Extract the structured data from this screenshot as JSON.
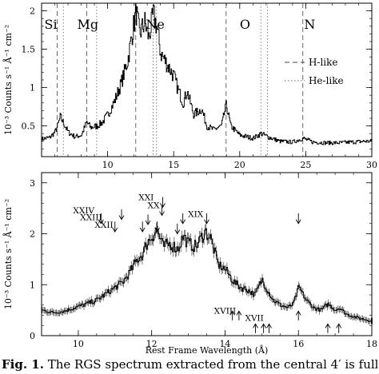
{
  "chart_data": [
    {
      "type": "line",
      "panel": "top",
      "xlabel": "",
      "ylabel": "10⁻³ Counts s⁻¹ Å⁻¹ cm⁻²",
      "xlim": [
        5,
        30
      ],
      "ylim": [
        0.1,
        2.1
      ],
      "x_ticks": [
        10,
        15,
        20,
        25,
        30
      ],
      "y_ticks": [
        0.5,
        1,
        1.5,
        2
      ],
      "element_labels": [
        {
          "text": "Si",
          "x": 5.7
        },
        {
          "text": "Mg",
          "x": 8.5
        },
        {
          "text": "Ne",
          "x": 13.6
        },
        {
          "text": "O",
          "x": 20.4
        },
        {
          "text": "N",
          "x": 25.3
        }
      ],
      "h_like_lines": [
        6.18,
        8.42,
        12.13,
        18.97,
        24.78
      ],
      "he_like_lines": [
        6.65,
        9.17,
        13.45,
        13.7,
        21.6,
        22.1
      ],
      "legend": [
        {
          "label": "H-like",
          "style": "dashed"
        },
        {
          "label": "He-like",
          "style": "dotted"
        }
      ],
      "legend_position": "right",
      "spectrum_points": [
        {
          "x": 5.0,
          "y": 0.33
        },
        {
          "x": 5.6,
          "y": 0.35
        },
        {
          "x": 6.0,
          "y": 0.42
        },
        {
          "x": 6.2,
          "y": 0.5
        },
        {
          "x": 6.4,
          "y": 0.62
        },
        {
          "x": 6.6,
          "y": 0.55
        },
        {
          "x": 7.0,
          "y": 0.42
        },
        {
          "x": 7.5,
          "y": 0.36
        },
        {
          "x": 8.0,
          "y": 0.38
        },
        {
          "x": 8.4,
          "y": 0.55
        },
        {
          "x": 8.7,
          "y": 0.48
        },
        {
          "x": 9.2,
          "y": 0.5
        },
        {
          "x": 9.6,
          "y": 0.55
        },
        {
          "x": 10.0,
          "y": 0.65
        },
        {
          "x": 10.5,
          "y": 0.82
        },
        {
          "x": 11.0,
          "y": 1.05
        },
        {
          "x": 11.5,
          "y": 1.35
        },
        {
          "x": 11.9,
          "y": 1.75
        },
        {
          "x": 12.13,
          "y": 2.0
        },
        {
          "x": 12.4,
          "y": 1.7
        },
        {
          "x": 12.8,
          "y": 1.85
        },
        {
          "x": 13.1,
          "y": 1.65
        },
        {
          "x": 13.45,
          "y": 1.95
        },
        {
          "x": 13.7,
          "y": 1.8
        },
        {
          "x": 14.0,
          "y": 1.45
        },
        {
          "x": 14.5,
          "y": 1.3
        },
        {
          "x": 15.0,
          "y": 1.15
        },
        {
          "x": 15.3,
          "y": 0.98
        },
        {
          "x": 15.7,
          "y": 0.8
        },
        {
          "x": 16.0,
          "y": 0.95
        },
        {
          "x": 16.5,
          "y": 0.65
        },
        {
          "x": 17.1,
          "y": 0.72
        },
        {
          "x": 17.5,
          "y": 0.5
        },
        {
          "x": 18.0,
          "y": 0.45
        },
        {
          "x": 18.6,
          "y": 0.5
        },
        {
          "x": 18.97,
          "y": 0.78
        },
        {
          "x": 19.3,
          "y": 0.5
        },
        {
          "x": 20.0,
          "y": 0.38
        },
        {
          "x": 21.0,
          "y": 0.34
        },
        {
          "x": 21.6,
          "y": 0.4
        },
        {
          "x": 22.1,
          "y": 0.36
        },
        {
          "x": 23.0,
          "y": 0.3
        },
        {
          "x": 24.0,
          "y": 0.29
        },
        {
          "x": 24.78,
          "y": 0.34
        },
        {
          "x": 25.5,
          "y": 0.29
        },
        {
          "x": 26.5,
          "y": 0.28
        },
        {
          "x": 27.5,
          "y": 0.28
        },
        {
          "x": 28.5,
          "y": 0.29
        },
        {
          "x": 29.5,
          "y": 0.3
        }
      ]
    },
    {
      "type": "line",
      "panel": "bottom",
      "xlabel": "Rest Frame Wavelength (Å)",
      "ylabel": "10⁻³ Counts s⁻¹ Å⁻¹ cm⁻²",
      "xlim": [
        9,
        18
      ],
      "ylim": [
        0,
        3.2
      ],
      "x_ticks": [
        10,
        12,
        14,
        16,
        18
      ],
      "y_ticks": [
        0,
        1,
        2,
        3
      ],
      "ion_labels": [
        {
          "text": "XXIV",
          "x": 10.15,
          "y": 2.4
        },
        {
          "text": "XXIII",
          "x": 10.35,
          "y": 2.27
        },
        {
          "text": "XXII",
          "x": 10.7,
          "y": 2.12
        },
        {
          "text": "XXI",
          "x": 11.85,
          "y": 2.66
        },
        {
          "text": "XX",
          "x": 12.05,
          "y": 2.5
        },
        {
          "text": "XIX",
          "x": 13.2,
          "y": 2.33
        },
        {
          "text": "XVIII",
          "x": 14.0,
          "y": 0.43
        },
        {
          "text": "XVII",
          "x": 14.8,
          "y": 0.29
        }
      ],
      "down_arrows": [
        10.62,
        11.18,
        11.0,
        11.75,
        12.15,
        12.28,
        12.85,
        12.7,
        13.5,
        16.0,
        11.9,
        12.3
      ],
      "up_arrows": [
        14.2,
        14.38,
        14.83,
        15.05,
        15.2,
        16.0,
        16.8,
        17.1
      ],
      "spectrum_points": [
        {
          "x": 9.0,
          "y": 0.5
        },
        {
          "x": 9.3,
          "y": 0.45
        },
        {
          "x": 9.6,
          "y": 0.48
        },
        {
          "x": 9.9,
          "y": 0.55
        },
        {
          "x": 10.2,
          "y": 0.62
        },
        {
          "x": 10.5,
          "y": 0.7
        },
        {
          "x": 10.8,
          "y": 0.85
        },
        {
          "x": 11.0,
          "y": 0.95
        },
        {
          "x": 11.2,
          "y": 1.05
        },
        {
          "x": 11.4,
          "y": 1.25
        },
        {
          "x": 11.6,
          "y": 1.5
        },
        {
          "x": 11.75,
          "y": 1.6
        },
        {
          "x": 11.85,
          "y": 1.8
        },
        {
          "x": 12.0,
          "y": 1.95
        },
        {
          "x": 12.13,
          "y": 2.08
        },
        {
          "x": 12.3,
          "y": 1.75
        },
        {
          "x": 12.5,
          "y": 1.8
        },
        {
          "x": 12.7,
          "y": 1.7
        },
        {
          "x": 12.85,
          "y": 1.95
        },
        {
          "x": 13.0,
          "y": 1.8
        },
        {
          "x": 13.2,
          "y": 1.75
        },
        {
          "x": 13.45,
          "y": 2.05
        },
        {
          "x": 13.6,
          "y": 1.9
        },
        {
          "x": 13.8,
          "y": 1.4
        },
        {
          "x": 14.0,
          "y": 1.3
        },
        {
          "x": 14.2,
          "y": 1.08
        },
        {
          "x": 14.4,
          "y": 0.95
        },
        {
          "x": 14.6,
          "y": 0.9
        },
        {
          "x": 14.8,
          "y": 0.8
        },
        {
          "x": 15.0,
          "y": 1.1
        },
        {
          "x": 15.1,
          "y": 0.95
        },
        {
          "x": 15.3,
          "y": 0.7
        },
        {
          "x": 15.5,
          "y": 0.6
        },
        {
          "x": 15.7,
          "y": 0.55
        },
        {
          "x": 15.85,
          "y": 0.62
        },
        {
          "x": 16.0,
          "y": 0.95
        },
        {
          "x": 16.2,
          "y": 0.7
        },
        {
          "x": 16.4,
          "y": 0.55
        },
        {
          "x": 16.6,
          "y": 0.5
        },
        {
          "x": 16.8,
          "y": 0.62
        },
        {
          "x": 17.0,
          "y": 0.5
        },
        {
          "x": 17.1,
          "y": 0.55
        },
        {
          "x": 17.3,
          "y": 0.42
        },
        {
          "x": 17.6,
          "y": 0.35
        },
        {
          "x": 17.9,
          "y": 0.3
        },
        {
          "x": 18.0,
          "y": 0.28
        }
      ]
    }
  ],
  "caption": {
    "bold": "Fig. 1.",
    "text": " The RGS spectrum extracted from the central 4′ is full"
  }
}
